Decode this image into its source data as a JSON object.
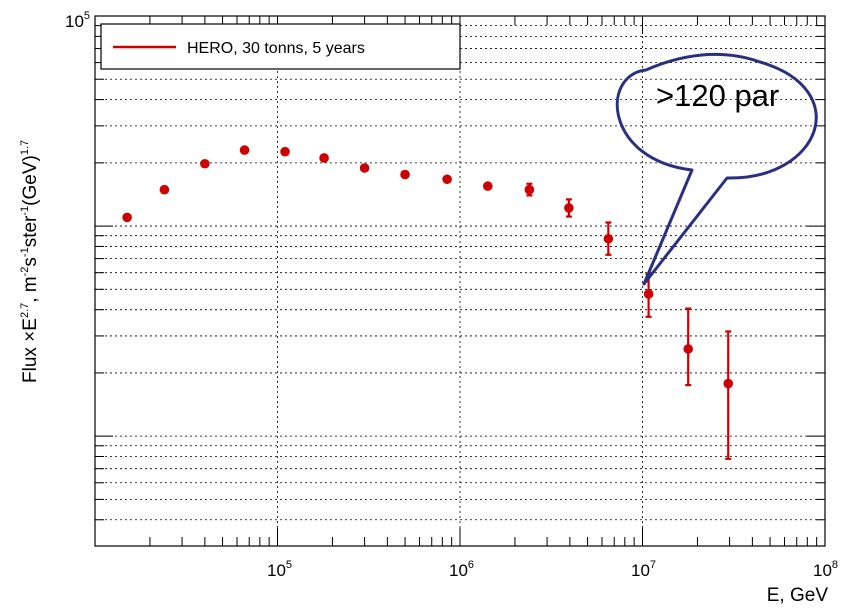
{
  "chart_data": {
    "type": "scatter",
    "title": "",
    "xlabel": "E, GeV",
    "ylabel": {
      "prefix": "Flux ×E",
      "exp1": "2.7",
      "mid1": ", m",
      "exp2": "-2",
      "mid2": "s",
      "exp3": "-1",
      "mid3": "ster",
      "exp4": "-1",
      "mid4": "(GeV)",
      "exp5": "1.7"
    },
    "x_scale": "log",
    "y_scale": "log",
    "xlim": [
      10000,
      100000000
    ],
    "ylim": [
      300,
      100000
    ],
    "grid": true,
    "x_ticks": [
      {
        "base": "10",
        "exp": "5",
        "value": 100000
      },
      {
        "base": "10",
        "exp": "6",
        "value": 1000000
      },
      {
        "base": "10",
        "exp": "7",
        "value": 10000000
      },
      {
        "base": "10",
        "exp": "8",
        "value": 100000000
      }
    ],
    "y_ticks": [
      {
        "base": "10",
        "exp": "5",
        "value": 100000
      }
    ],
    "legend": {
      "position": "top-left",
      "entries": [
        "HERO, 30 tonns, 5 years"
      ]
    },
    "series": [
      {
        "name": "HERO, 30 tonns, 5 years",
        "color": "#cc0000",
        "points": [
          {
            "x": 15000,
            "y": 11000
          },
          {
            "x": 24000,
            "y": 14900
          },
          {
            "x": 40000,
            "y": 19800
          },
          {
            "x": 66000,
            "y": 23000
          },
          {
            "x": 110000,
            "y": 22600
          },
          {
            "x": 180000,
            "y": 21100
          },
          {
            "x": 300000,
            "y": 18900
          },
          {
            "x": 500000,
            "y": 17600
          },
          {
            "x": 850000,
            "y": 16700
          },
          {
            "x": 1420000,
            "y": 15500
          },
          {
            "x": 2400000,
            "y": 14900,
            "ylo": 14000,
            "yhi": 15900
          },
          {
            "x": 3950000,
            "y": 12200,
            "ylo": 11100,
            "yhi": 13400
          },
          {
            "x": 6500000,
            "y": 8700,
            "ylo": 7300,
            "yhi": 10400
          },
          {
            "x": 10800000,
            "y": 4750,
            "ylo": 3700,
            "yhi": 5900
          },
          {
            "x": 17800000,
            "y": 2600,
            "ylo": 1750,
            "yhi": 4050
          },
          {
            "x": 29500000,
            "y": 1780,
            "ylo": 780,
            "yhi": 3150
          }
        ]
      }
    ],
    "annotations": [
      {
        "text": ">120 par",
        "points_to_x": 10000000,
        "points_to_y": 5000
      }
    ]
  }
}
